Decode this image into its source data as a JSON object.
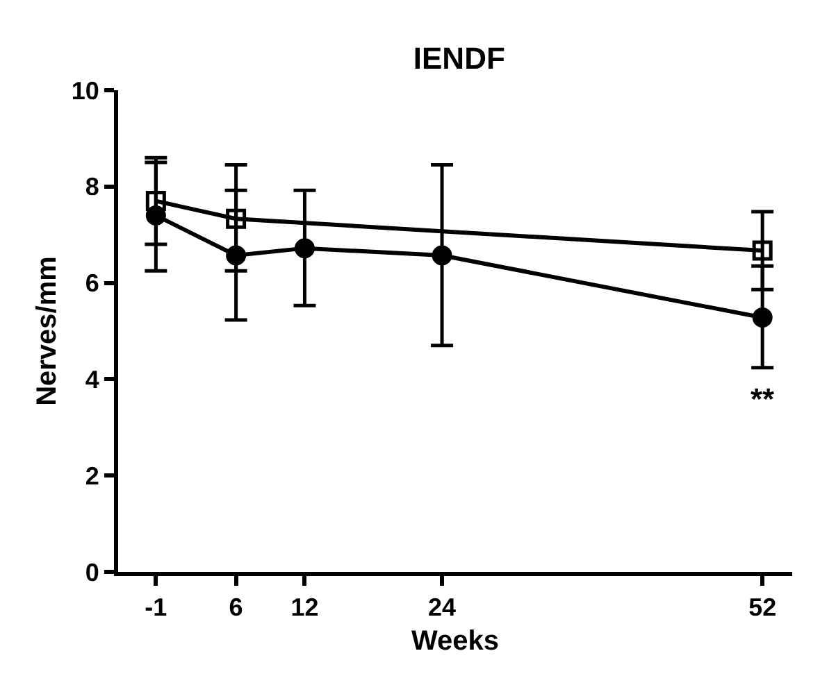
{
  "chart_data": {
    "type": "line",
    "title": "IENDF",
    "xlabel": "Weeks",
    "ylabel": "Nerves/mm",
    "xlim": [
      -4.3,
      54.6
    ],
    "xticks": [
      -1,
      6,
      12,
      24,
      52
    ],
    "ylim": [
      0,
      10
    ],
    "yticks": [
      0,
      2,
      4,
      6,
      8,
      10
    ],
    "grid": false,
    "line_style": "solid",
    "series": [
      {
        "color": "#000000",
        "marker": "square",
        "x": [
          -1,
          6,
          52
        ],
        "values": [
          7.7,
          7.33,
          6.67
        ],
        "errors": [
          [
            6.8,
            8.6
          ],
          [
            6.25,
            8.45
          ],
          [
            5.86,
            7.48
          ]
        ]
      },
      {
        "color": "#000000",
        "marker": "circle",
        "x": [
          -1,
          6,
          12,
          24,
          52
        ],
        "values": [
          7.4,
          6.57,
          6.72,
          6.57,
          5.28
        ],
        "errors": [
          [
            6.25,
            8.5
          ],
          [
            5.23,
            7.92
          ],
          [
            5.53,
            7.92
          ],
          [
            4.7,
            8.45
          ],
          [
            4.24,
            6.35
          ]
        ]
      }
    ],
    "annotations": [
      "**"
    ]
  }
}
